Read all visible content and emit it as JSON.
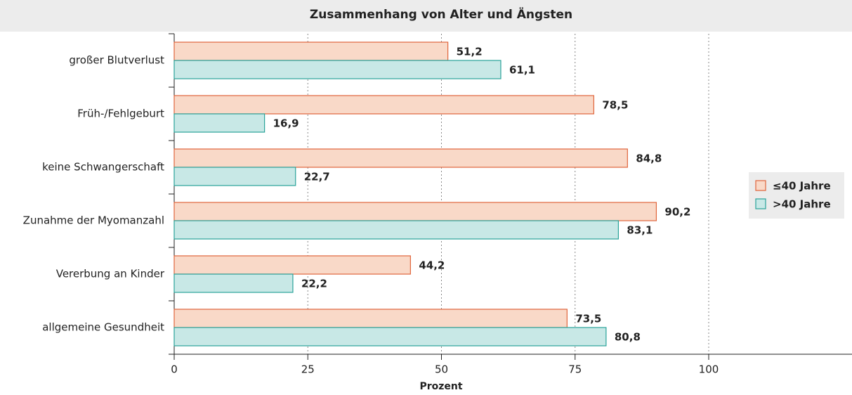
{
  "chart_data": {
    "type": "barh",
    "title": "Zusammenhang von Alter und Ängsten",
    "xlabel": "Prozent",
    "categories": [
      "großer Blutverlust",
      "Früh-/Fehlgeburt",
      "keine Schwangerschaft",
      "Zunahme der Myomanzahl",
      "Vererbung an Kinder",
      "allgemeine Gesundheit"
    ],
    "series": [
      {
        "name": "≤40 Jahre",
        "color": "#f9d9c8",
        "edge": "#e0653c",
        "values": [
          51.2,
          78.5,
          84.8,
          90.2,
          44.2,
          73.5
        ],
        "value_labels": [
          "51,2",
          "78,5",
          "84,8",
          "90,2",
          "44,2",
          "73,5"
        ]
      },
      {
        "name": ">40 Jahre",
        "color": "#c8e8e6",
        "edge": "#2aa39a",
        "values": [
          61.1,
          16.9,
          22.7,
          83.1,
          22.2,
          80.8
        ],
        "value_labels": [
          "61,1",
          "16,9",
          "22,7",
          "83,1",
          "22,2",
          "80,8"
        ]
      }
    ],
    "xlim": [
      0,
      100
    ],
    "xticks": [
      0,
      25,
      50,
      75,
      100
    ],
    "grid": true,
    "legend": "right"
  }
}
